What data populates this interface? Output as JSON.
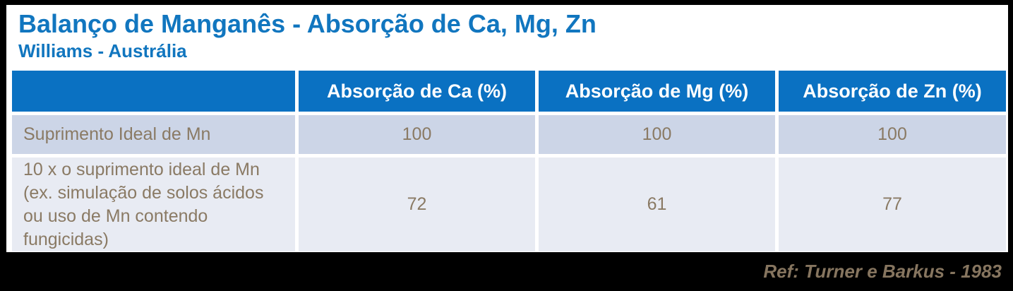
{
  "header": {
    "title": "Balanço de Manganês - Absorção de Ca, Mg, Zn",
    "subtitle": "Williams - Austrália"
  },
  "chart_data": {
    "type": "table",
    "title": "Balanço de Manganês - Absorção de Ca, Mg, Zn",
    "subtitle": "Williams - Austrália",
    "columns": [
      "",
      "Absorção de Ca (%)",
      "Absorção de Mg (%)",
      "Absorção de Zn (%)"
    ],
    "rows": [
      {
        "label": "Suprimento Ideal de Mn",
        "values": [
          100,
          100,
          100
        ]
      },
      {
        "label": "10 x o suprimento ideal de Mn\n(ex. simulação de solos ácidos\nou uso de Mn contendo\nfungicidas)",
        "values": [
          72,
          61,
          77
        ]
      }
    ]
  },
  "footer": {
    "reference": "Ref: Turner e Barkus - 1983"
  },
  "colors": {
    "title_blue": "#1176BF",
    "header_blue": "#0A71C2",
    "header_text": "#FFFFFF",
    "row1_bg": "#CCD5E7",
    "row2_bg": "#E8EBF3",
    "cell_text": "#8A7A64",
    "footer_bg": "#000000",
    "footer_text": "#86755F",
    "background": "#FFFFFF"
  }
}
